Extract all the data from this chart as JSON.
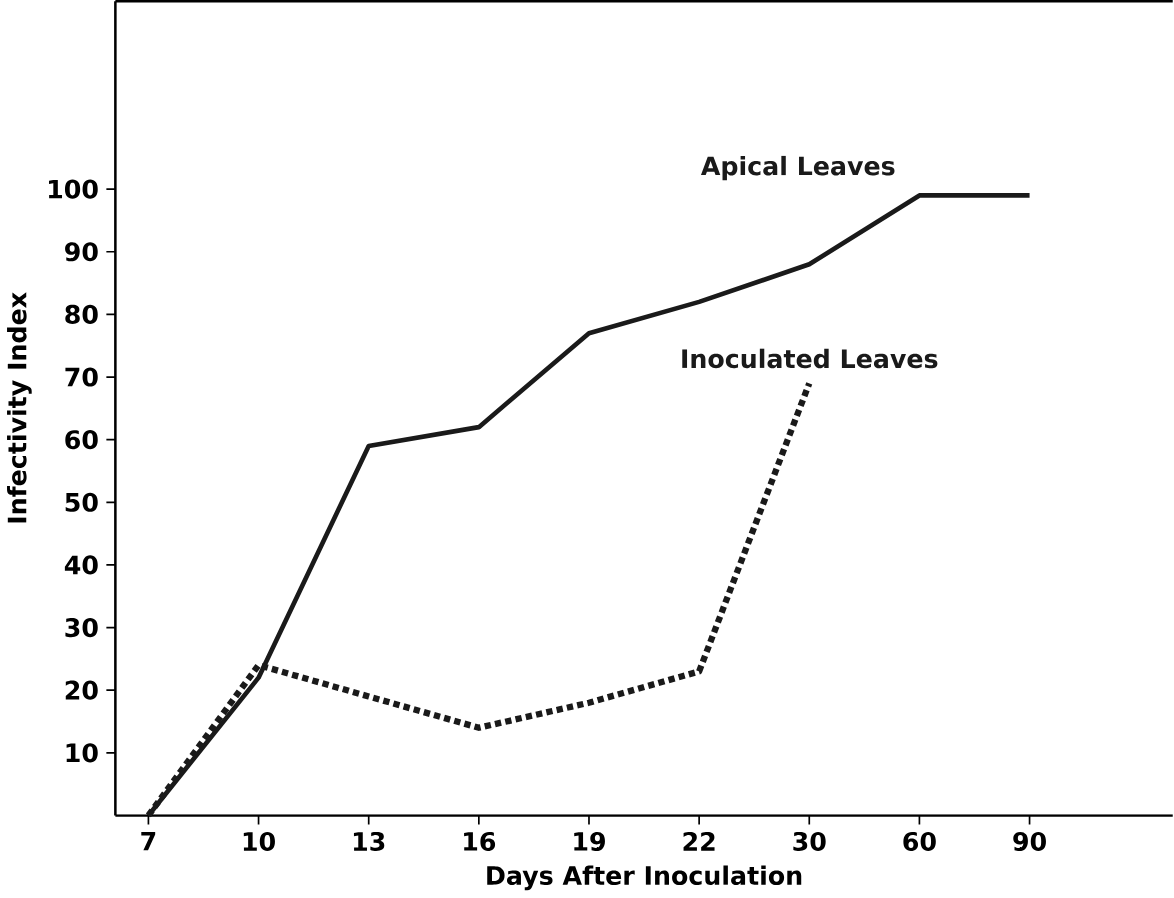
{
  "chart_data": {
    "type": "line",
    "xlabel": "Days After Inoculation",
    "ylabel": "Infectivity Index",
    "categories": [
      "7",
      "10",
      "13",
      "16",
      "19",
      "22",
      "30",
      "60",
      "90"
    ],
    "series": [
      {
        "name": "Apical Leaves",
        "color": "#1a1a1a",
        "line_style": "solid",
        "values": [
          0,
          22,
          59,
          62,
          77,
          82,
          88,
          99,
          99
        ]
      },
      {
        "name": "Inoculated Leaves",
        "color": "#1a1a1a",
        "line_style": "dotted",
        "values": [
          0,
          24,
          19,
          14,
          18,
          23,
          69,
          null,
          null
        ]
      }
    ],
    "ylim": [
      0,
      130
    ],
    "yticks": [
      10,
      20,
      30,
      40,
      50,
      60,
      70,
      80,
      90,
      100
    ],
    "grid": false,
    "marker": "none"
  }
}
